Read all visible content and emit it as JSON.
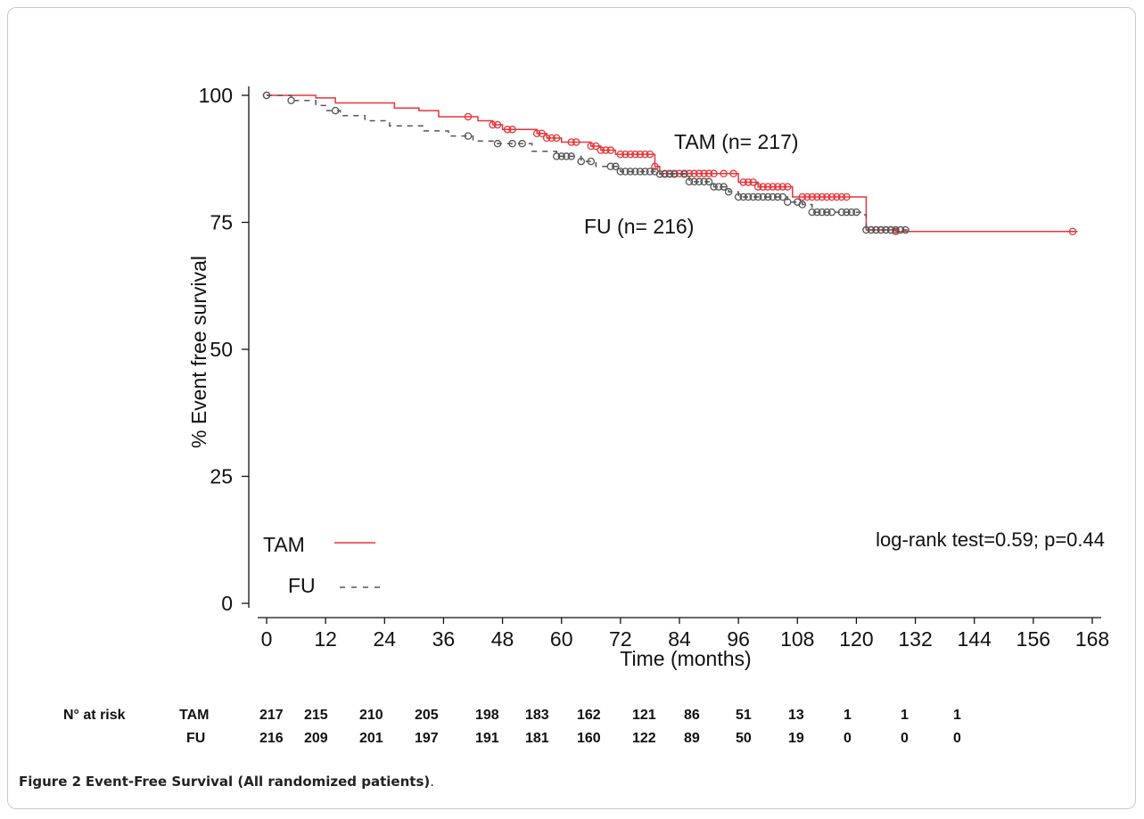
{
  "chart_data": {
    "type": "line",
    "subtype": "kaplan-meier",
    "xlabel": "Time (months)",
    "ylabel": "% Event free survival",
    "xlim": [
      0,
      168
    ],
    "ylim": [
      0,
      100
    ],
    "xticks": [
      0,
      12,
      24,
      36,
      48,
      60,
      72,
      84,
      96,
      108,
      120,
      132,
      144,
      156,
      168
    ],
    "yticks": [
      0,
      25,
      50,
      75,
      100
    ],
    "legend_position": "bottom-left",
    "annotation": "log-rank test=0.59; p=0.44",
    "series": [
      {
        "name": "TAM",
        "label": "TAM (n= 217)",
        "color": "#e8353a",
        "dash": "solid",
        "steps": [
          [
            0,
            100
          ],
          [
            10,
            99.5
          ],
          [
            14,
            98.5
          ],
          [
            26,
            97.5
          ],
          [
            31,
            97
          ],
          [
            35,
            95.8
          ],
          [
            43,
            95
          ],
          [
            46,
            94.2
          ],
          [
            48,
            93.3
          ],
          [
            51,
            93.3
          ],
          [
            55,
            92.5
          ],
          [
            57,
            91.6
          ],
          [
            60,
            90.8
          ],
          [
            66,
            90
          ],
          [
            68,
            89.2
          ],
          [
            71,
            88.4
          ],
          [
            79,
            86
          ],
          [
            80,
            84.6
          ],
          [
            92,
            84.6
          ],
          [
            96,
            82.9
          ],
          [
            100,
            82
          ],
          [
            106,
            82
          ],
          [
            107,
            80
          ],
          [
            116,
            80
          ],
          [
            122,
            73.5
          ],
          [
            128,
            73.2
          ],
          [
            165,
            73.2
          ]
        ],
        "censors": [
          0,
          41,
          46,
          47,
          49,
          50,
          55,
          56,
          57,
          58,
          59,
          62,
          63,
          66,
          67,
          68,
          69,
          70,
          72,
          73,
          74,
          75,
          76,
          77,
          78,
          79,
          81,
          82,
          83,
          84,
          85,
          86,
          87,
          88,
          89,
          90,
          91,
          93,
          95,
          97,
          98,
          99,
          100,
          101,
          102,
          103,
          104,
          105,
          106,
          109,
          110,
          111,
          112,
          113,
          114,
          115,
          116,
          117,
          118,
          123,
          124,
          125,
          126,
          127,
          128,
          164
        ]
      },
      {
        "name": "FU",
        "label": "FU (n= 216)",
        "color": "#555555",
        "dash": "dashed",
        "steps": [
          [
            0,
            100
          ],
          [
            5,
            99
          ],
          [
            10,
            98
          ],
          [
            12,
            97
          ],
          [
            15,
            96
          ],
          [
            20,
            95
          ],
          [
            25,
            94
          ],
          [
            32,
            93
          ],
          [
            37,
            92
          ],
          [
            42,
            91
          ],
          [
            47,
            90.5
          ],
          [
            54,
            89
          ],
          [
            59,
            88
          ],
          [
            64,
            87
          ],
          [
            67,
            86
          ],
          [
            72,
            85
          ],
          [
            80,
            84.5
          ],
          [
            86,
            83
          ],
          [
            91,
            82
          ],
          [
            94,
            81
          ],
          [
            96,
            80
          ],
          [
            106,
            79
          ],
          [
            109,
            78.5
          ],
          [
            111,
            77
          ],
          [
            121,
            76.5
          ],
          [
            122,
            73.5
          ],
          [
            131,
            73.5
          ]
        ],
        "censors": [
          0,
          5,
          14,
          41,
          47,
          50,
          52,
          59,
          60,
          61,
          62,
          64,
          66,
          70,
          71,
          72,
          73,
          74,
          75,
          76,
          77,
          78,
          79,
          80,
          81,
          82,
          83,
          85,
          86,
          87,
          88,
          89,
          90,
          91,
          92,
          93,
          94,
          96,
          97,
          98,
          99,
          100,
          101,
          102,
          103,
          104,
          105,
          106,
          108,
          109,
          111,
          112,
          113,
          114,
          115,
          117,
          118,
          119,
          120,
          122,
          123,
          124,
          125,
          126,
          127,
          128,
          129,
          130
        ]
      }
    ],
    "at_risk": {
      "label": "N° at risk",
      "rows": [
        {
          "name": "TAM",
          "values": [
            "217",
            "215",
            "210",
            "205",
            "198",
            "183",
            "162",
            "121",
            "86",
            "51",
            "13",
            "1",
            "1",
            "1"
          ]
        },
        {
          "name": "FU",
          "values": [
            "216",
            "209",
            "201",
            "197",
            "191",
            "181",
            "160",
            "122",
            "89",
            "50",
            "19",
            "0",
            "0",
            "0"
          ]
        }
      ]
    }
  },
  "caption": {
    "label": "Figure 2",
    "text": "Event-Free Survival (All randomized patients)",
    "tail": "."
  }
}
